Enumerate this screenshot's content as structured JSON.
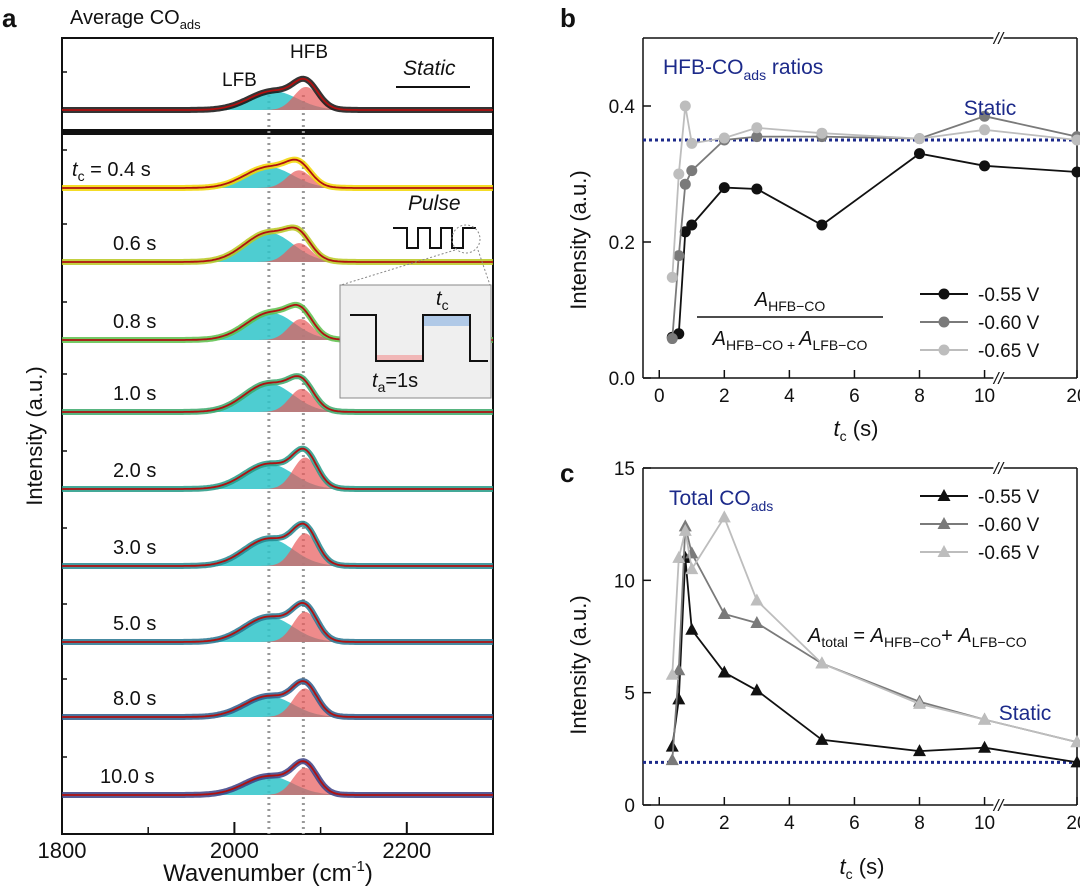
{
  "chart_data": [
    {
      "panel": "a",
      "type": "line",
      "title": "Average CO",
      "title_sub": "ads",
      "xlabel": "Wavenumber (cm",
      "xlabel_sup": "-1",
      "xlabel_end": ")",
      "ylabel": "Intensity (a.u.)",
      "xlim": [
        1800,
        2300
      ],
      "x_ticks": [
        "1800",
        "2000",
        "2200"
      ],
      "x_tick_values": [
        1800,
        2000,
        2200
      ],
      "band_labels": {
        "lfb": "LFB",
        "hfb": "HFB"
      },
      "band_centers_cm1": {
        "lfb": 2040,
        "hfb": 2080
      },
      "static_label": "Static",
      "pulse_label": "Pulse",
      "inset_tc": "t",
      "inset_tc_sub": "c",
      "inset_ta": "t",
      "inset_ta_sub": "a",
      "inset_ta_value": "=1s",
      "tc_prefix": "t",
      "tc_prefix_sub": "c",
      "series": [
        {
          "label": "",
          "color": "#111111",
          "lfb_amp": 0.45,
          "hfb_amp": 0.55,
          "lfb_c": 2045,
          "hfb_c": 2083
        },
        {
          "label": "= 0.4 s",
          "color": "#f2d600",
          "lfb_amp": 0.5,
          "hfb_amp": 0.42,
          "lfb_c": 2040,
          "hfb_c": 2075
        },
        {
          "label": "0.6 s",
          "color": "#b9c81e",
          "lfb_amp": 0.7,
          "hfb_amp": 0.45,
          "lfb_c": 2040,
          "hfb_c": 2075
        },
        {
          "label": "0.8 s",
          "color": "#5cbf4a",
          "lfb_amp": 0.65,
          "hfb_amp": 0.5,
          "lfb_c": 2042,
          "hfb_c": 2077
        },
        {
          "label": "1.0 s",
          "color": "#3aa86a",
          "lfb_amp": 0.68,
          "hfb_amp": 0.55,
          "lfb_c": 2040,
          "hfb_c": 2078
        },
        {
          "label": "2.0 s",
          "color": "#239a86",
          "lfb_amp": 0.6,
          "hfb_amp": 0.75,
          "lfb_c": 2040,
          "hfb_c": 2082
        },
        {
          "label": "3.0 s",
          "color": "#23888f",
          "lfb_amp": 0.65,
          "hfb_amp": 0.78,
          "lfb_c": 2040,
          "hfb_c": 2082
        },
        {
          "label": "5.0 s",
          "color": "#267690",
          "lfb_amp": 0.6,
          "hfb_amp": 0.72,
          "lfb_c": 2040,
          "hfb_c": 2082
        },
        {
          "label": "8.0 s",
          "color": "#2c5c8c",
          "lfb_amp": 0.5,
          "hfb_amp": 0.68,
          "lfb_c": 2040,
          "hfb_c": 2082
        },
        {
          "label": "10.0 s",
          "color": "#3a3f85",
          "lfb_amp": 0.45,
          "hfb_amp": 0.65,
          "lfb_c": 2040,
          "hfb_c": 2082
        }
      ]
    },
    {
      "panel": "b",
      "type": "line",
      "annotation": "HFB-CO",
      "annotation_sub": "ads",
      "annotation_end": " ratios",
      "static_label": "Static",
      "static_value": 0.35,
      "xlabel": "t",
      "xlabel_sub": "c",
      "xlabel_end": " (s)",
      "ylabel": "Intensity (a.u.)",
      "ylim": [
        0,
        0.5
      ],
      "y_ticks": [
        "0.0",
        "0.2",
        "0.4"
      ],
      "y_tick_values": [
        0,
        0.2,
        0.4
      ],
      "x_ticks": [
        "0",
        "2",
        "4",
        "6",
        "8",
        "10",
        "20"
      ],
      "x_tick_values": [
        0,
        2,
        4,
        6,
        8,
        10,
        20
      ],
      "axis_break": "//",
      "formula": {
        "num": "A",
        "num_sub": "HFB−CO",
        "den1": "A",
        "den1_sub": "HFB−CO",
        "plus": " + ",
        "den2": "A",
        "den2_sub": "LFB−CO"
      },
      "series": [
        {
          "name": "-0.55 V",
          "color": "#111111",
          "x": [
            0.4,
            0.6,
            0.8,
            1,
            2,
            3,
            5,
            8,
            10,
            20
          ],
          "y": [
            0.06,
            0.065,
            0.215,
            0.225,
            0.28,
            0.278,
            0.225,
            0.33,
            0.312,
            0.303
          ]
        },
        {
          "name": "-0.60 V",
          "color": "#7a7a7a",
          "x": [
            0.4,
            0.6,
            0.8,
            1,
            2,
            3,
            5,
            8,
            10,
            20
          ],
          "y": [
            0.058,
            0.18,
            0.285,
            0.305,
            0.35,
            0.355,
            0.355,
            0.352,
            0.385,
            0.355
          ]
        },
        {
          "name": "-0.65 V",
          "color": "#bdbdbd",
          "x": [
            0.4,
            0.6,
            0.8,
            1,
            2,
            3,
            5,
            8,
            10,
            20
          ],
          "y": [
            0.148,
            0.3,
            0.4,
            0.345,
            0.353,
            0.368,
            0.36,
            0.352,
            0.365,
            0.35
          ]
        }
      ]
    },
    {
      "panel": "c",
      "type": "line",
      "annotation": "Total CO",
      "annotation_sub": "ads",
      "static_label": "Static",
      "static_value": 1.9,
      "xlabel": "t",
      "xlabel_sub": "c",
      "xlabel_end": " (s)",
      "ylabel": "Intensity (a.u.)",
      "ylim": [
        0,
        15
      ],
      "y_ticks": [
        "0",
        "5",
        "10",
        "15"
      ],
      "y_tick_values": [
        0,
        5,
        10,
        15
      ],
      "x_ticks": [
        "0",
        "2",
        "4",
        "6",
        "8",
        "10",
        "20"
      ],
      "x_tick_values": [
        0,
        2,
        4,
        6,
        8,
        10,
        20
      ],
      "axis_break": "//",
      "formula": {
        "lhs": "A",
        "lhs_sub": "total",
        "eq": " = ",
        "t1": "A",
        "t1_sub": "HFB−CO",
        "plus": "+ ",
        "t2": "A",
        "t2_sub": "LFB−CO"
      },
      "series": [
        {
          "name": "-0.55 V",
          "color": "#111111",
          "x": [
            0.4,
            0.6,
            0.8,
            1,
            2,
            3,
            5,
            8,
            10,
            20
          ],
          "y": [
            2.6,
            4.7,
            11.0,
            7.8,
            5.9,
            5.1,
            2.9,
            2.4,
            2.55,
            1.9
          ]
        },
        {
          "name": "-0.60 V",
          "color": "#7a7a7a",
          "x": [
            0.4,
            0.6,
            0.8,
            1,
            2,
            3,
            5,
            8,
            10,
            20
          ],
          "y": [
            2.0,
            6.0,
            12.4,
            11.2,
            8.5,
            8.1,
            6.3,
            4.6,
            3.8,
            2.8
          ]
        },
        {
          "name": "-0.65 V",
          "color": "#bdbdbd",
          "x": [
            0.4,
            0.6,
            0.8,
            1,
            2,
            3,
            5,
            8,
            10,
            20
          ],
          "y": [
            5.8,
            11.0,
            12.2,
            10.5,
            12.8,
            9.1,
            6.3,
            4.5,
            3.8,
            2.8
          ]
        }
      ]
    }
  ]
}
